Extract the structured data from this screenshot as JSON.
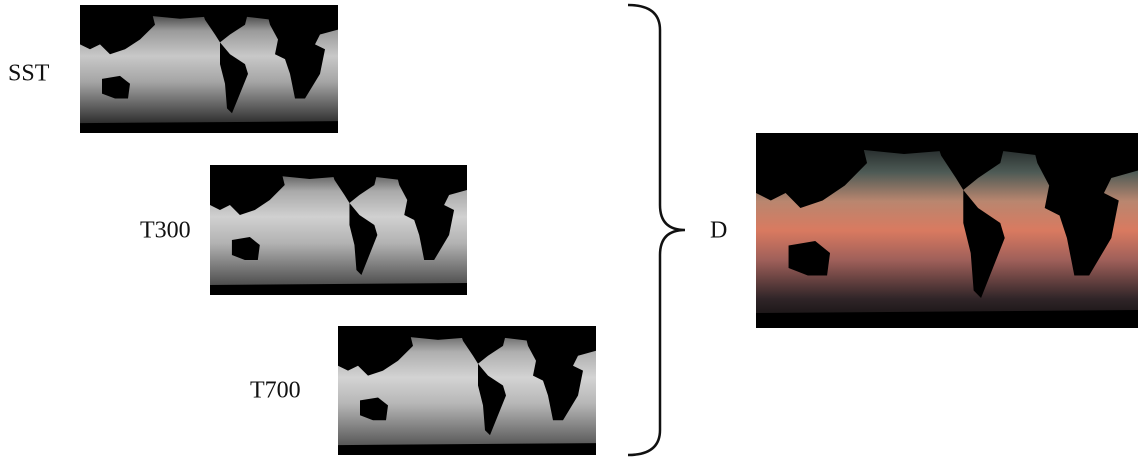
{
  "inputs": [
    {
      "label": "SST"
    },
    {
      "label": "T300"
    },
    {
      "label": "T700"
    }
  ],
  "output": {
    "label": "D"
  }
}
